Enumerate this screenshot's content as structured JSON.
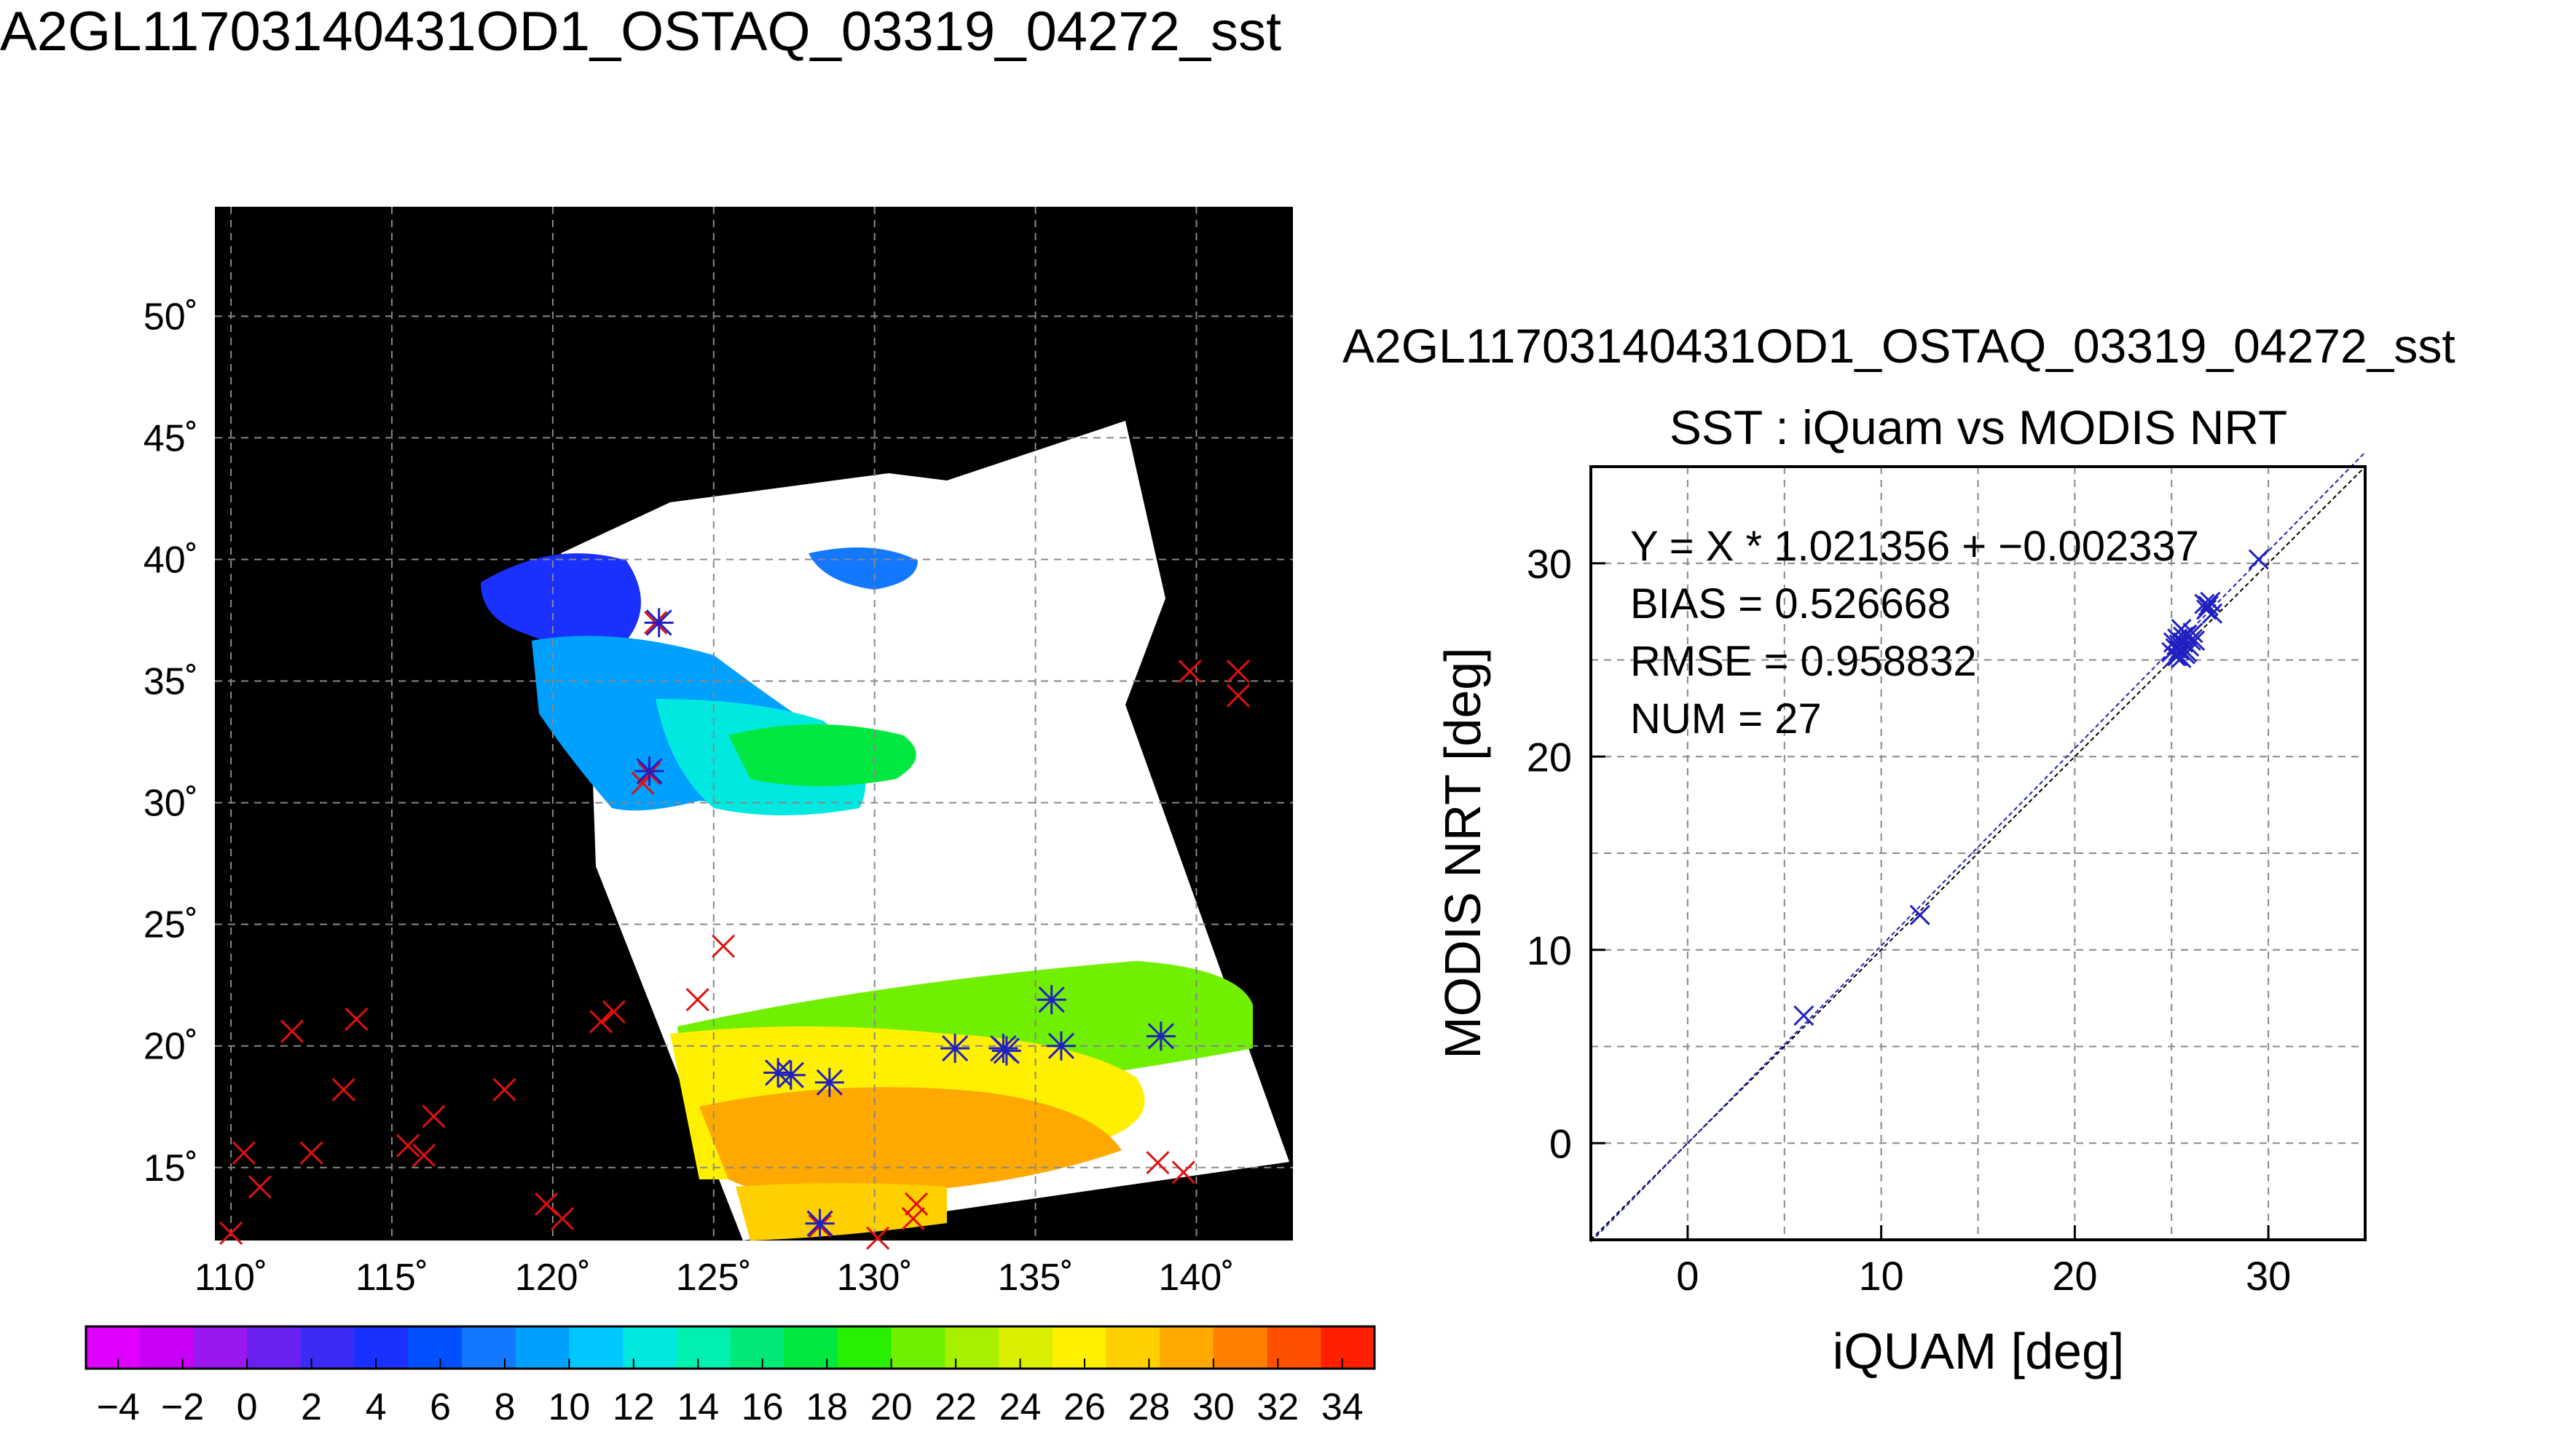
{
  "main_title": "A2GL11703140431OD1_OSTAQ_03319_04272_sst",
  "map": {
    "lon_ticks": [
      "110˚",
      "115˚",
      "120˚",
      "125˚",
      "130˚",
      "135˚",
      "140˚"
    ],
    "lat_ticks": [
      "50˚",
      "45˚",
      "40˚",
      "35˚",
      "30˚",
      "25˚",
      "20˚",
      "15˚"
    ],
    "lon_range": [
      109.5,
      143.0
    ],
    "lat_range": [
      12.0,
      54.5
    ],
    "background_color": "#000000",
    "land_color": "#ffffff",
    "grid": true
  },
  "colorbar": {
    "tick_labels": [
      "−4",
      "−2",
      "0",
      "2",
      "4",
      "6",
      "8",
      "10",
      "12",
      "14",
      "16",
      "18",
      "20",
      "22",
      "24",
      "26",
      "28",
      "30",
      "32",
      "34"
    ],
    "range": [
      -5,
      35
    ],
    "colors": [
      "#e000ff",
      "#c800f8",
      "#9a18f0",
      "#6a20f0",
      "#3a2cf4",
      "#1a30ff",
      "#0050ff",
      "#1478ff",
      "#00a0ff",
      "#00c8ff",
      "#00e8e0",
      "#00f0b0",
      "#00e878",
      "#00e840",
      "#28f000",
      "#70f000",
      "#a8f000",
      "#d8f000",
      "#fff000",
      "#ffd000",
      "#ffa800",
      "#ff8000",
      "#ff5000",
      "#ff2000"
    ]
  },
  "chart_data": [
    {
      "type": "scatter",
      "title": "SST : iQuam vs MODIS NRT",
      "subtitle": "A2GL11703140431OD1_OSTAQ_03319_04272_sst",
      "xlabel": "iQUAM [deg]",
      "ylabel": "MODIS NRT [deg]",
      "xlim": [
        -5,
        35
      ],
      "ylim": [
        -5,
        35
      ],
      "xticks": [
        0,
        10,
        20,
        30
      ],
      "yticks": [
        0,
        10,
        20,
        30
      ],
      "grid": true,
      "annotations": [
        "Y = X * 1.021356 + −0.002337",
        "BIAS = 0.526668",
        "RMSE = 0.958832",
        "NUM = 27"
      ],
      "fit": {
        "slope": 1.021356,
        "intercept": -0.002337
      },
      "points": [
        {
          "x": 6.0,
          "y": 6.6
        },
        {
          "x": 12.0,
          "y": 11.8
        },
        {
          "x": 25.0,
          "y": 25.4
        },
        {
          "x": 25.2,
          "y": 25.6
        },
        {
          "x": 25.4,
          "y": 25.8
        },
        {
          "x": 25.3,
          "y": 25.2
        },
        {
          "x": 25.6,
          "y": 26.2
        },
        {
          "x": 25.8,
          "y": 25.4
        },
        {
          "x": 25.5,
          "y": 26.6
        },
        {
          "x": 26.0,
          "y": 26.0
        },
        {
          "x": 25.9,
          "y": 25.7
        },
        {
          "x": 25.1,
          "y": 25.9
        },
        {
          "x": 25.7,
          "y": 25.3
        },
        {
          "x": 26.1,
          "y": 26.4
        },
        {
          "x": 25.4,
          "y": 25.5
        },
        {
          "x": 25.6,
          "y": 25.9
        },
        {
          "x": 25.2,
          "y": 25.2
        },
        {
          "x": 26.8,
          "y": 27.6
        },
        {
          "x": 27.0,
          "y": 28.0
        },
        {
          "x": 26.9,
          "y": 27.8
        },
        {
          "x": 27.1,
          "y": 27.4
        },
        {
          "x": 26.7,
          "y": 27.9
        },
        {
          "x": 29.5,
          "y": 30.2
        },
        {
          "x": 25.3,
          "y": 26.1
        },
        {
          "x": 25.8,
          "y": 26.3
        },
        {
          "x": 25.5,
          "y": 25.1
        },
        {
          "x": 26.2,
          "y": 26.0
        }
      ]
    }
  ],
  "map_markers": {
    "red_x": [
      [
        110.0,
        12.3
      ],
      [
        110.4,
        15.6
      ],
      [
        110.9,
        14.2
      ],
      [
        111.9,
        20.6
      ],
      [
        112.5,
        15.6
      ],
      [
        113.9,
        21.1
      ],
      [
        113.5,
        18.2
      ],
      [
        115.5,
        15.9
      ],
      [
        116.0,
        15.5
      ],
      [
        116.3,
        17.1
      ],
      [
        118.5,
        18.2
      ],
      [
        119.8,
        13.5
      ],
      [
        120.3,
        12.9
      ],
      [
        121.5,
        21.0
      ],
      [
        121.9,
        21.4
      ],
      [
        122.8,
        30.8
      ],
      [
        123.0,
        31.2
      ],
      [
        123.2,
        37.4
      ],
      [
        124.5,
        21.9
      ],
      [
        125.3,
        24.1
      ],
      [
        128.3,
        12.6
      ],
      [
        130.1,
        12.1
      ],
      [
        131.3,
        13.5
      ],
      [
        131.2,
        12.9
      ],
      [
        138.8,
        15.2
      ],
      [
        139.6,
        14.8
      ],
      [
        139.8,
        35.4
      ],
      [
        141.3,
        35.4
      ],
      [
        141.3,
        34.4
      ]
    ],
    "blue_star": [
      [
        123.0,
        31.3
      ],
      [
        123.3,
        37.4
      ],
      [
        127.0,
        18.9
      ],
      [
        127.4,
        18.8
      ],
      [
        128.6,
        18.5
      ],
      [
        128.3,
        12.7
      ],
      [
        132.5,
        19.9
      ],
      [
        134.0,
        19.9
      ],
      [
        134.1,
        19.8
      ],
      [
        135.5,
        21.9
      ],
      [
        135.8,
        20.0
      ],
      [
        138.9,
        20.4
      ]
    ]
  }
}
